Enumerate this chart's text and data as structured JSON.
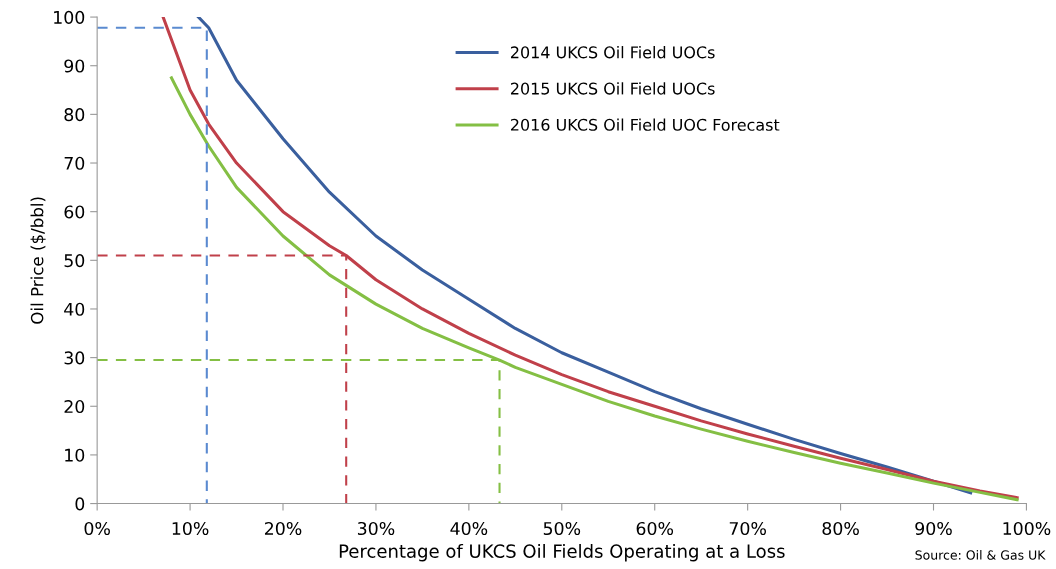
{
  "chart_data": {
    "type": "line",
    "xlabel": "Percentage of UKCS Oil Fields Operating at a Loss",
    "ylabel": "Oil Price ($/bbl)",
    "xlim": [
      0,
      100
    ],
    "ylim": [
      0,
      100
    ],
    "xticks": [
      {
        "value": 0,
        "label": "0%"
      },
      {
        "value": 10,
        "label": "10%"
      },
      {
        "value": 20,
        "label": "20%"
      },
      {
        "value": 30,
        "label": "30%"
      },
      {
        "value": 40,
        "label": "40%"
      },
      {
        "value": 50,
        "label": "50%"
      },
      {
        "value": 60,
        "label": "60%"
      },
      {
        "value": 70,
        "label": "70%"
      },
      {
        "value": 80,
        "label": "80%"
      },
      {
        "value": 90,
        "label": "90%"
      },
      {
        "value": 100,
        "label": "100%"
      }
    ],
    "yticks": [
      0,
      10,
      20,
      30,
      40,
      50,
      60,
      70,
      80,
      90,
      100
    ],
    "grid": false,
    "legend": "top right",
    "marker": "none",
    "line_style": "solid",
    "annotations": [
      "Source: Oil & Gas UK"
    ],
    "series": [
      {
        "name": "2014 UKCS Oil Field UOCs",
        "color": "#3a5f9e",
        "x": [
          10.9,
          12,
          15,
          20,
          25,
          30,
          35,
          40,
          45,
          50,
          55,
          60,
          65,
          70,
          75,
          80,
          85,
          90,
          94
        ],
        "values": [
          100,
          97.8,
          87,
          75,
          64,
          55,
          48,
          42,
          36,
          31,
          27,
          23,
          19.5,
          16.3,
          13.2,
          10.3,
          7.5,
          4.6,
          2.2
        ]
      },
      {
        "name": "2015 UKCS Oil Field UOCs",
        "color": "#c0404a",
        "x": [
          7.1,
          10,
          12,
          15,
          20,
          25,
          26.8,
          30,
          35,
          40,
          45,
          50,
          55,
          60,
          65,
          70,
          75,
          80,
          85,
          90,
          95,
          99
        ],
        "values": [
          100,
          85,
          78,
          70,
          60,
          53,
          51,
          46,
          40,
          35,
          30.5,
          26.5,
          23,
          20,
          17,
          14.3,
          11.8,
          9.3,
          7,
          4.6,
          2.6,
          1.2
        ]
      },
      {
        "name": "2016 UKCS Oil Field UOC Forecast",
        "color": "#84bf44",
        "x": [
          8,
          10,
          12,
          15,
          20,
          25,
          30,
          35,
          40,
          43.3,
          45,
          50,
          55,
          60,
          65,
          70,
          75,
          80,
          85,
          90,
          95,
          99
        ],
        "values": [
          87.5,
          80,
          73.5,
          65,
          55,
          47,
          41,
          36,
          32,
          29.5,
          28,
          24.5,
          21,
          18,
          15.3,
          12.8,
          10.5,
          8.3,
          6.3,
          4.2,
          2.3,
          0.8
        ]
      },
      {
        "color": "#5a8ad0",
        "line_style": "dashed",
        "x": [
          0,
          11.8,
          11.8
        ],
        "values": [
          97.8,
          97.8,
          0
        ]
      },
      {
        "color": "#c0404a",
        "line_style": "dashed",
        "x": [
          0,
          26.8,
          26.8
        ],
        "values": [
          51,
          51,
          0
        ]
      },
      {
        "color": "#84bf44",
        "line_style": "dashed",
        "x": [
          0,
          43.3,
          43.3
        ],
        "values": [
          29.5,
          29.5,
          0
        ]
      }
    ]
  }
}
